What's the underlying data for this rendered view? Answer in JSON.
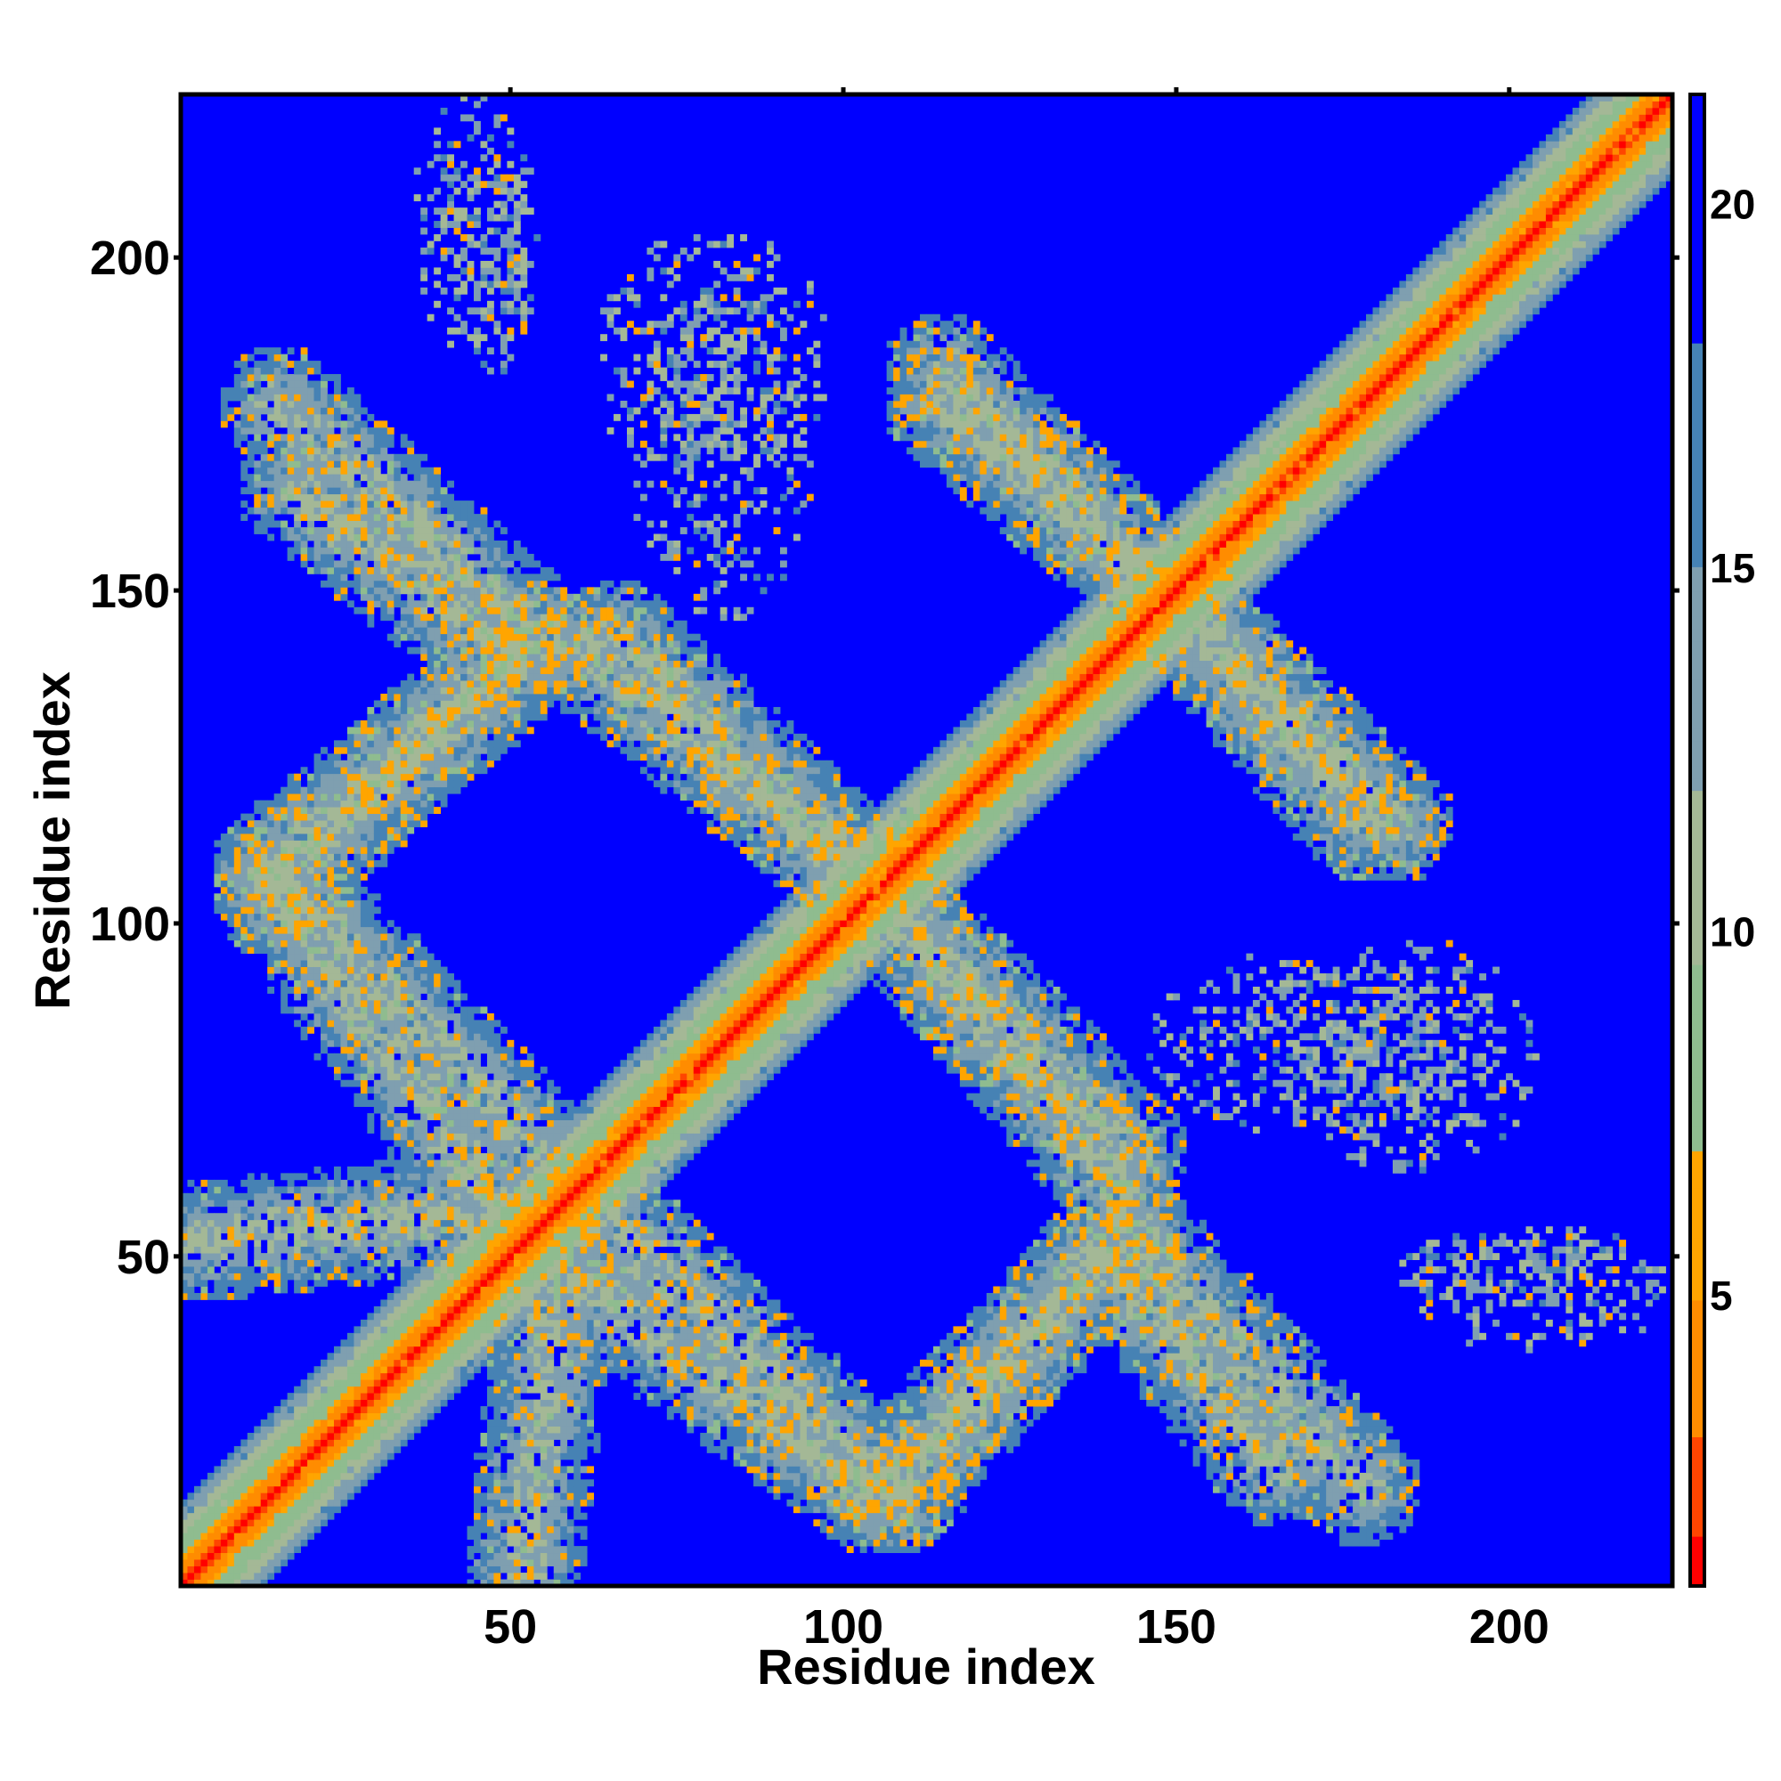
{
  "chart_data": {
    "type": "heatmap",
    "title": "",
    "xlabel": "Residue index",
    "ylabel": "Residue index",
    "xlim": [
      1,
      224
    ],
    "ylim": [
      1,
      224
    ],
    "x_ticks": [
      50,
      100,
      150,
      200
    ],
    "y_ticks": [
      50,
      100,
      150,
      200
    ],
    "colorbar": {
      "range": [
        1,
        21.5
      ],
      "ticks": [
        5,
        10,
        15,
        20
      ],
      "colors": [
        "#ff0000",
        "#ff4500",
        "#ff8c00",
        "#ffa500",
        "#8fbc8f",
        "#a4b896",
        "#7f9fb0",
        "#4682b4",
        "#0000ff"
      ]
    },
    "grid": false,
    "legend": "colorbar right",
    "description_regions": {
      "diagonal_band_halfwidth": 9,
      "features": [
        {
          "kind": "antidiagonal",
          "from": [
            1,
            52
          ],
          "to": [
            58,
            58
          ]
        },
        {
          "kind": "band",
          "from": [
            58,
            48
          ],
          "to": [
            105,
            14
          ]
        },
        {
          "kind": "band",
          "from": [
            105,
            14
          ],
          "to": [
            140,
            50
          ]
        },
        {
          "kind": "band",
          "from": [
            140,
            50
          ],
          "to": [
            165,
            18
          ]
        },
        {
          "kind": "band",
          "from": [
            58,
            62
          ],
          "to": [
            14,
            108
          ]
        },
        {
          "kind": "band",
          "from": [
            14,
            108
          ],
          "to": [
            55,
            142
          ]
        },
        {
          "kind": "band",
          "from": [
            55,
            142
          ],
          "to": [
            15,
            178
          ]
        },
        {
          "kind": "band",
          "from": [
            60,
            142
          ],
          "to": [
            105,
            105
          ]
        },
        {
          "kind": "band",
          "from": [
            105,
            105
          ],
          "to": [
            143,
            66
          ]
        },
        {
          "kind": "band",
          "from": [
            115,
            178
          ],
          "to": [
            150,
            148
          ]
        },
        {
          "kind": "band",
          "from": [
            150,
            148
          ],
          "to": [
            183,
            115
          ]
        },
        {
          "kind": "scatter",
          "center": [
            45,
            205
          ],
          "spread": [
            10,
            20
          ]
        },
        {
          "kind": "scatter",
          "center": [
            80,
            185
          ],
          "spread": [
            18,
            20
          ]
        },
        {
          "kind": "scatter",
          "center": [
            170,
            82
          ],
          "spread": [
            25,
            14
          ]
        },
        {
          "kind": "scatter",
          "center": [
            200,
            48
          ],
          "spread": [
            18,
            6
          ]
        }
      ]
    }
  }
}
